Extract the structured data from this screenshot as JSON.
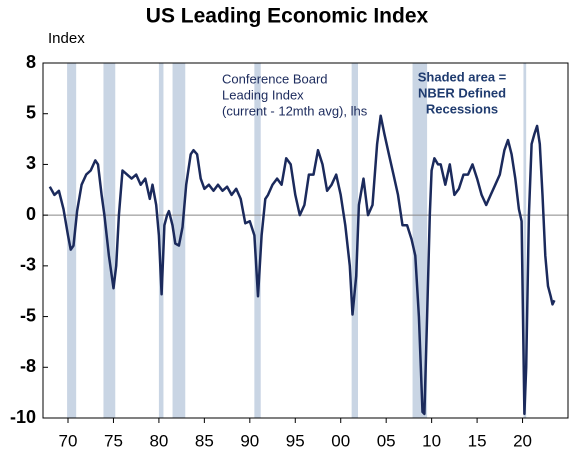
{
  "chart_data": {
    "type": "line",
    "title": "US Leading Economic Index",
    "y_axis_label": "Index",
    "color": "#1b2a5c",
    "recession_color": "#c9d5e4",
    "xlim": [
      1967.25,
      2025
    ],
    "ylim": [
      -10,
      7.5
    ],
    "xticks": [
      {
        "value": 1970,
        "label": "70"
      },
      {
        "value": 1975,
        "label": "75"
      },
      {
        "value": 1980,
        "label": "80"
      },
      {
        "value": 1985,
        "label": "85"
      },
      {
        "value": 1990,
        "label": "90"
      },
      {
        "value": 1995,
        "label": "95"
      },
      {
        "value": 2000,
        "label": "00"
      },
      {
        "value": 2005,
        "label": "05"
      },
      {
        "value": 2010,
        "label": "10"
      },
      {
        "value": 2015,
        "label": "15"
      },
      {
        "value": 2020,
        "label": "20"
      }
    ],
    "yticks": [
      {
        "value": 7.5,
        "label": "8"
      },
      5,
      {
        "value": 2.5,
        "label": "3"
      },
      0,
      {
        "value": -2.5,
        "label": "-3"
      },
      -5,
      {
        "value": -7.5,
        "label": "-8"
      },
      -10
    ],
    "recessions": [
      [
        1969.9,
        1970.9
      ],
      [
        1973.9,
        1975.2
      ],
      [
        1980.0,
        1980.5
      ],
      [
        1981.5,
        1982.9
      ],
      [
        1990.5,
        1991.2
      ],
      [
        2001.2,
        2001.9
      ],
      [
        2007.9,
        2009.5
      ],
      [
        2020.1,
        2020.4
      ]
    ],
    "annotations": [
      {
        "lines": [
          "Conference Board",
          "Leading Index",
          "(current - 12mth avg), lhs"
        ]
      },
      {
        "lines": [
          "Shaded area =",
          "NBER Defined",
          "Recessions"
        ]
      }
    ],
    "x": [
      1968.0,
      1968.5,
      1969.0,
      1969.5,
      1970.0,
      1970.3,
      1970.6,
      1971.0,
      1971.5,
      1972.0,
      1972.5,
      1973.0,
      1973.3,
      1973.7,
      1974.0,
      1974.5,
      1975.0,
      1975.3,
      1975.6,
      1976.0,
      1976.5,
      1977.0,
      1977.5,
      1978.0,
      1978.5,
      1979.0,
      1979.3,
      1979.7,
      1980.0,
      1980.3,
      1980.6,
      1980.9,
      1981.1,
      1981.5,
      1981.8,
      1982.2,
      1982.6,
      1983.0,
      1983.5,
      1983.8,
      1984.2,
      1984.6,
      1985.0,
      1985.5,
      1986.0,
      1986.5,
      1987.0,
      1987.5,
      1988.0,
      1988.5,
      1989.0,
      1989.5,
      1990.0,
      1990.5,
      1990.9,
      1991.3,
      1991.7,
      1992.0,
      1992.5,
      1993.0,
      1993.5,
      1994.0,
      1994.5,
      1995.0,
      1995.5,
      1996.0,
      1996.5,
      1997.0,
      1997.5,
      1998.0,
      1998.5,
      1999.0,
      1999.5,
      2000.0,
      2000.5,
      2001.0,
      2001.3,
      2001.7,
      2002.0,
      2002.5,
      2003.0,
      2003.5,
      2004.0,
      2004.4,
      2004.8,
      2005.3,
      2005.8,
      2006.3,
      2006.8,
      2007.3,
      2007.8,
      2008.2,
      2008.6,
      2009.0,
      2009.2,
      2009.5,
      2009.8,
      2010.0,
      2010.3,
      2010.7,
      2011.0,
      2011.5,
      2012.0,
      2012.5,
      2013.0,
      2013.5,
      2014.0,
      2014.5,
      2015.0,
      2015.5,
      2016.0,
      2016.5,
      2017.0,
      2017.5,
      2018.0,
      2018.4,
      2018.8,
      2019.2,
      2019.6,
      2019.9,
      2020.2,
      2020.4,
      2020.7,
      2021.0,
      2021.3,
      2021.6,
      2021.9,
      2022.2,
      2022.5,
      2022.8,
      2023.1,
      2023.3,
      2023.5
    ],
    "values": [
      1.4,
      1.0,
      1.2,
      0.3,
      -1.0,
      -1.7,
      -1.5,
      0.2,
      1.5,
      2.0,
      2.2,
      2.7,
      2.5,
      1.0,
      0.0,
      -2.0,
      -3.6,
      -2.5,
      0.0,
      2.2,
      2.0,
      1.8,
      2.0,
      1.5,
      1.8,
      0.8,
      1.5,
      0.5,
      -1.0,
      -3.9,
      -0.5,
      0.0,
      0.2,
      -0.5,
      -1.4,
      -1.5,
      -0.6,
      1.5,
      3.0,
      3.2,
      3.0,
      1.8,
      1.3,
      1.5,
      1.2,
      1.5,
      1.2,
      1.4,
      1.0,
      1.3,
      0.8,
      -0.4,
      -0.3,
      -1.0,
      -4.0,
      -1.0,
      0.8,
      1.0,
      1.5,
      1.8,
      1.5,
      2.8,
      2.5,
      1.0,
      0.0,
      0.5,
      2.0,
      2.0,
      3.2,
      2.5,
      1.2,
      1.5,
      2.0,
      1.0,
      -0.5,
      -2.5,
      -4.9,
      -3.0,
      0.5,
      1.8,
      0.0,
      0.5,
      3.5,
      4.9,
      4.0,
      3.0,
      2.0,
      1.0,
      -0.5,
      -0.5,
      -1.2,
      -2.0,
      -5.0,
      -9.7,
      -9.8,
      -5.0,
      0.0,
      2.2,
      2.8,
      2.5,
      2.5,
      1.5,
      2.5,
      1.0,
      1.3,
      2.0,
      2.0,
      2.5,
      1.8,
      1.0,
      0.5,
      1.0,
      1.5,
      2.0,
      3.2,
      3.7,
      3.0,
      1.8,
      0.3,
      -0.3,
      -9.8,
      -7.5,
      0.0,
      3.5,
      4.0,
      4.4,
      3.5,
      1.0,
      -2.0,
      -3.5,
      -4.0,
      -4.4,
      -4.2
    ]
  }
}
